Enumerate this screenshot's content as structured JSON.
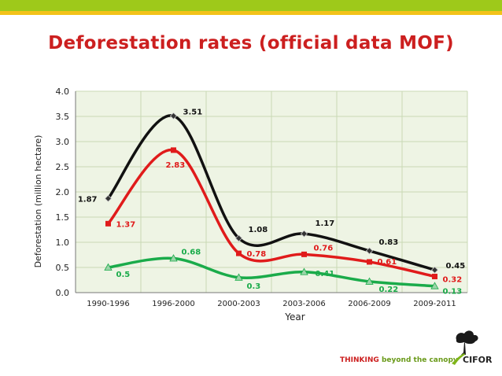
{
  "header": {
    "title": "Deforestation rates (official data MOF)"
  },
  "footer": {
    "tagline_strong": "THINKING",
    "tagline_rest": "beyond the canopy",
    "logo_text": "CIFOR"
  },
  "colors": {
    "title": "#cc1f1f",
    "plot_bg": "#eef4e4",
    "grid": "#c9d9b4",
    "top_bar": "#9ec91a",
    "accent_bar": "#f3c21a"
  },
  "chart_data": {
    "type": "line",
    "title": "",
    "xlabel": "Year",
    "ylabel": "Deforestation (million hectare)",
    "categories": [
      "1990-1996",
      "1996-2000",
      "2000-2003",
      "2003-2006",
      "2006-2009",
      "2009-2011"
    ],
    "ylim": [
      0,
      4.0
    ],
    "yticks": [
      "0.0",
      "0.5",
      "1.0",
      "1.5",
      "2.0",
      "2.5",
      "3.0",
      "3.5",
      "4.0"
    ],
    "grid": true,
    "legend": "none",
    "series": [
      {
        "values": [
          1.87,
          3.51,
          1.08,
          1.17,
          0.83,
          0.45
        ],
        "labels": [
          "1.87",
          "3.51",
          "1.08",
          "1.17",
          "0.83",
          "0.45"
        ],
        "color": "#111111",
        "marker": "diamond"
      },
      {
        "values": [
          1.37,
          2.83,
          0.78,
          0.76,
          0.61,
          0.32
        ],
        "labels": [
          "1.37",
          "2.83",
          "0.78",
          "0.76",
          "0.61",
          "0.32"
        ],
        "color": "#e01b1b",
        "marker": "square"
      },
      {
        "values": [
          0.5,
          0.68,
          0.3,
          0.41,
          0.22,
          0.13
        ],
        "labels": [
          "0.5",
          "0.68",
          "0.3",
          "0.41",
          "0.22",
          "0.13"
        ],
        "color": "#1aab4a",
        "marker": "triangle"
      }
    ]
  }
}
